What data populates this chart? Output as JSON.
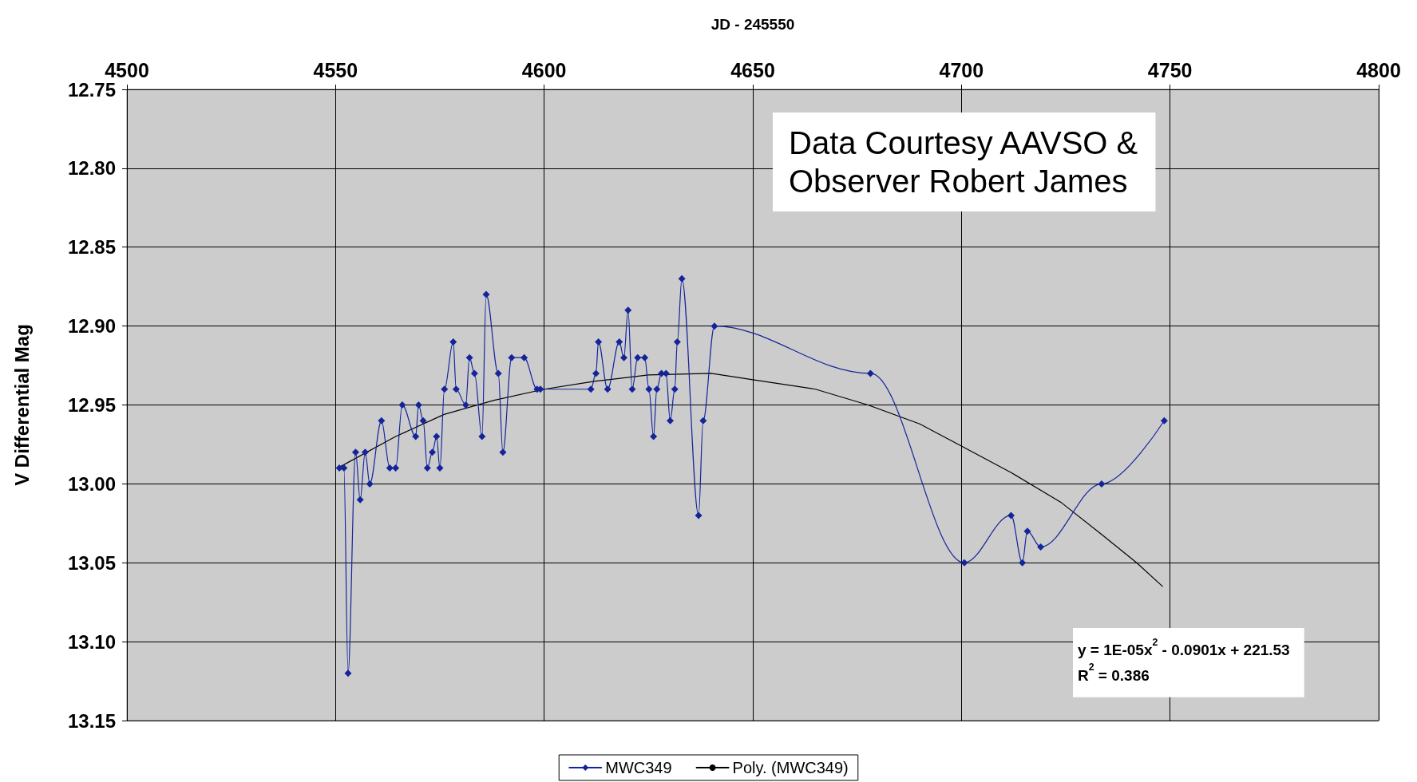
{
  "chart_data": {
    "type": "line",
    "xlabel": "JD - 245550",
    "ylabel": "V Differential Mag",
    "xlim": [
      4500,
      4800
    ],
    "xticks": [
      4500,
      4550,
      4600,
      4650,
      4700,
      4750,
      4800
    ],
    "ylim": [
      13.15,
      12.75
    ],
    "yticks": [
      {
        "value": 12.75,
        "label": "12.75"
      },
      {
        "value": 12.8,
        "label": "12.80"
      },
      {
        "value": 12.85,
        "label": "12.85"
      },
      {
        "value": 12.9,
        "label": "12.90"
      },
      {
        "value": 12.95,
        "label": "12.95"
      },
      {
        "value": 13.0,
        "label": "13.00"
      },
      {
        "value": 13.05,
        "label": "13.05"
      },
      {
        "value": 13.1,
        "label": "13.10"
      },
      {
        "value": 13.15,
        "label": "13.15"
      }
    ],
    "grid": true,
    "legend": "bottom",
    "series": [
      {
        "name": "MWC349",
        "color": "#14249a",
        "marker": "diamond",
        "x": [
          4550.9,
          4552.0,
          4553.0,
          4554.8,
          4555.9,
          4557.1,
          4558.2,
          4561.0,
          4563.0,
          4564.4,
          4566.0,
          4569.2,
          4569.9,
          4571.0,
          4572.0,
          4573.2,
          4574.2,
          4575.0,
          4576.1,
          4578.2,
          4578.9,
          4581.2,
          4582.1,
          4583.3,
          4585.1,
          4586.1,
          4589.0,
          4590.1,
          4592.2,
          4595.2,
          4598.3,
          4599.1,
          4611.2,
          4612.4,
          4613.0,
          4615.2,
          4618.0,
          4619.1,
          4620.1,
          4621.1,
          4622.4,
          4624.1,
          4625.1,
          4626.2,
          4627.0,
          4628.1,
          4629.2,
          4630.2,
          4631.3,
          4631.9,
          4633.0,
          4637.0,
          4638.1,
          4640.8,
          4678.2,
          4700.7,
          4711.9,
          4714.6,
          4715.8,
          4719.0,
          4733.6,
          4748.6
        ],
        "values": [
          12.99,
          12.99,
          13.12,
          12.98,
          13.01,
          12.98,
          13.0,
          12.96,
          12.99,
          12.99,
          12.95,
          12.97,
          12.95,
          12.96,
          12.99,
          12.98,
          12.97,
          12.99,
          12.94,
          12.91,
          12.94,
          12.95,
          12.92,
          12.93,
          12.97,
          12.88,
          12.93,
          12.98,
          12.92,
          12.92,
          12.94,
          12.94,
          12.94,
          12.93,
          12.91,
          12.94,
          12.91,
          12.92,
          12.89,
          12.94,
          12.92,
          12.92,
          12.94,
          12.97,
          12.94,
          12.93,
          12.93,
          12.96,
          12.94,
          12.91,
          12.87,
          13.02,
          12.96,
          12.9,
          12.93,
          13.05,
          13.02,
          13.05,
          13.03,
          13.04,
          13.0,
          12.96
        ]
      },
      {
        "name": "Poly. (MWC349)",
        "color": "#000000",
        "marker": "none",
        "x": [
          4550.5,
          4564.4,
          4576.0,
          4588.0,
          4600.0,
          4612.0,
          4625.0,
          4640.0,
          4650.0,
          4665.0,
          4677.6,
          4690.0,
          4700.0,
          4712.0,
          4724.0,
          4733.6,
          4742.0,
          4748.2
        ],
        "values": [
          12.99,
          12.97,
          12.956,
          12.947,
          12.94,
          12.935,
          12.931,
          12.93,
          12.934,
          12.94,
          12.95,
          12.962,
          12.976,
          12.993,
          13.012,
          13.032,
          13.05,
          13.065
        ]
      }
    ],
    "annotations": [
      "Data Courtesy AAVSO &\nObserver Robert James",
      "y = 1E-05x$^{2}$ - 0.0901x + 221.53\nR$^{2}$ = 0.386"
    ]
  }
}
